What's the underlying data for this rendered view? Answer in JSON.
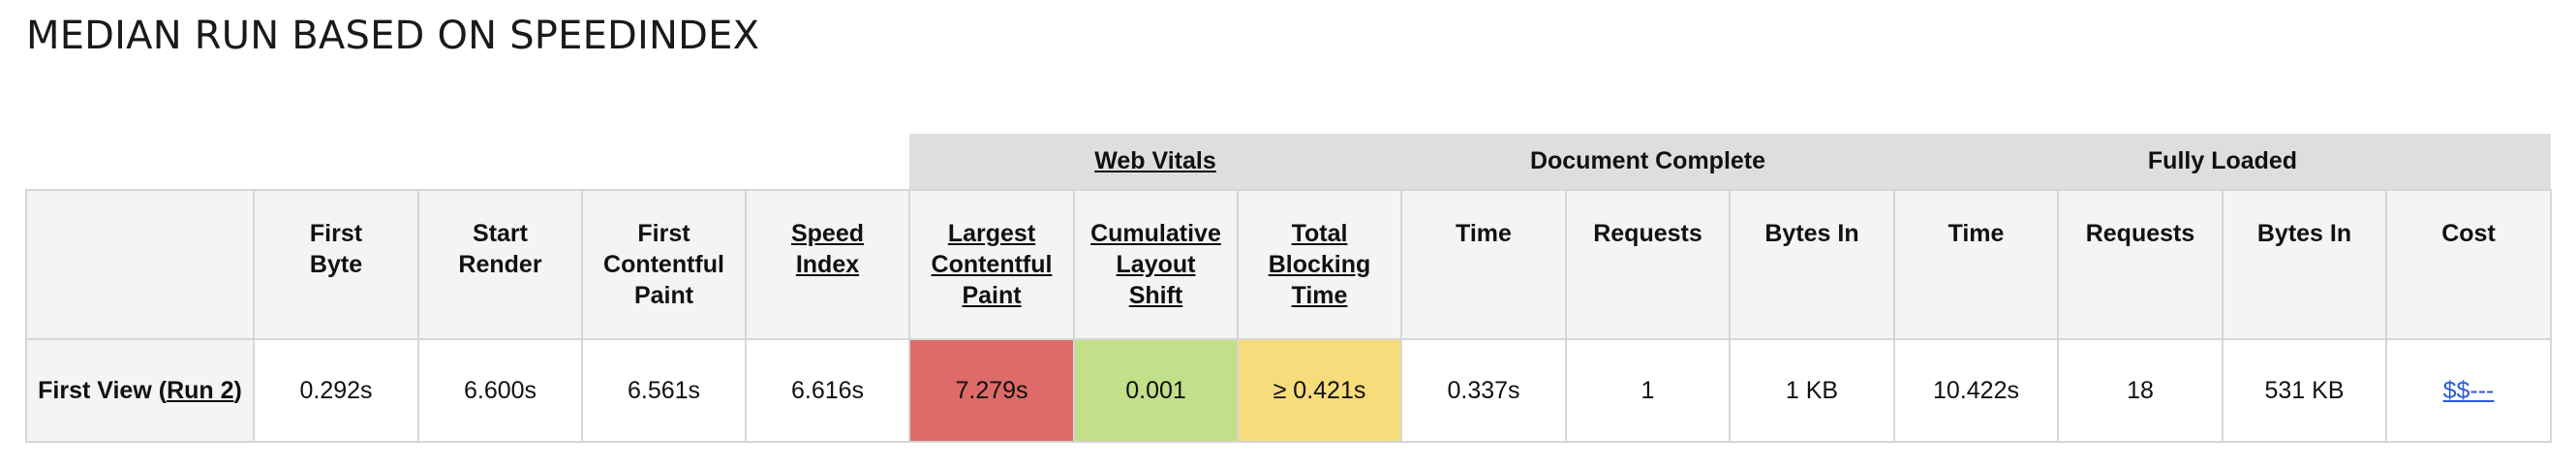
{
  "page_title": "MEDIAN RUN BASED ON SPEEDINDEX",
  "groups": {
    "web_vitals": "Web Vitals",
    "document_complete": "Document Complete",
    "fully_loaded": "Fully Loaded"
  },
  "columns": {
    "first_byte": [
      "First",
      "Byte"
    ],
    "start_render": [
      "Start",
      "Render"
    ],
    "first_contentful_paint": [
      "First",
      "Contentful",
      "Paint"
    ],
    "speed_index": [
      "Speed",
      "Index"
    ],
    "largest_contentful_paint": [
      "Largest",
      "Contentful",
      "Paint"
    ],
    "cumulative_layout_shift": [
      "Cumulative",
      "Layout",
      "Shift"
    ],
    "total_blocking_time": [
      "Total",
      "Blocking",
      "Time"
    ],
    "doc_time": "Time",
    "doc_requests": "Requests",
    "doc_bytes_in": "Bytes In",
    "full_time": "Time",
    "full_requests": "Requests",
    "full_bytes_in": "Bytes In",
    "cost": "Cost"
  },
  "row": {
    "label_prefix": "First View (",
    "run_link": "Run 2",
    "label_suffix": ")",
    "first_byte": "0.292s",
    "start_render": "6.600s",
    "first_contentful_paint": "6.561s",
    "speed_index": "6.616s",
    "largest_contentful_paint": "7.279s",
    "cumulative_layout_shift": "0.001",
    "total_blocking_time": "≥ 0.421s",
    "doc_time": "0.337s",
    "doc_requests": "1",
    "doc_bytes_in": "1 KB",
    "full_time": "10.422s",
    "full_requests": "18",
    "full_bytes_in": "531 KB",
    "cost": "$$---"
  },
  "status_colors": {
    "poor": "#dc6b69",
    "good": "#c2df8a",
    "needs_improvement": "#f6dc7b"
  }
}
